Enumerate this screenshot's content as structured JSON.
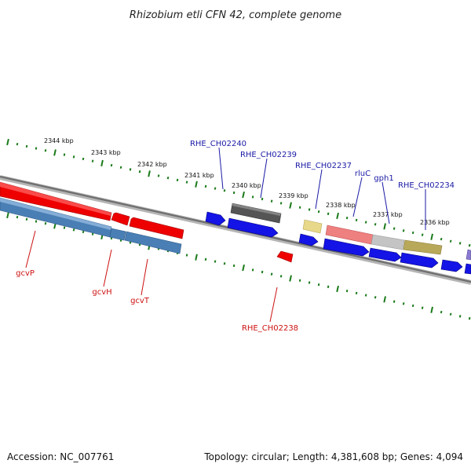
{
  "title": "Rhizobium etli CFN 42, complete genome",
  "footer": {
    "accession": "Accession: NC_007761",
    "topology": "Topology: circular; Length: 4,381,608 bp; Genes: 4,094"
  },
  "ticks": [
    "2344 kbp",
    "2343 kbp",
    "2342 kbp",
    "2341 kbp",
    "2340 kbp",
    "2339 kbp",
    "2338 kbp",
    "2337 kbp",
    "2336 kbp"
  ],
  "genes_top": [
    "RHE_CH02240",
    "RHE_CH02239",
    "RHE_CH02237",
    "rluC",
    "gph1",
    "RHE_CH02234"
  ],
  "genes_bottom": [
    "gcvP",
    "gcvH",
    "gcvT",
    "RHE_CH02238"
  ],
  "colors": {
    "forward_label": "#1a1aa6",
    "reverse_label": "#cc1111",
    "cds_blue": "#1414e6",
    "cds_red": "#ee0000",
    "rna_steel": "#4a7fb5",
    "pseudo_gray": "#555555",
    "misc_yellow": "#e8d98a",
    "pink": "#ee8080",
    "light_gray": "#c4c4c4",
    "olive": "#b8a85a",
    "tick_green": "#1a7a1a",
    "backbone": "#808080"
  }
}
